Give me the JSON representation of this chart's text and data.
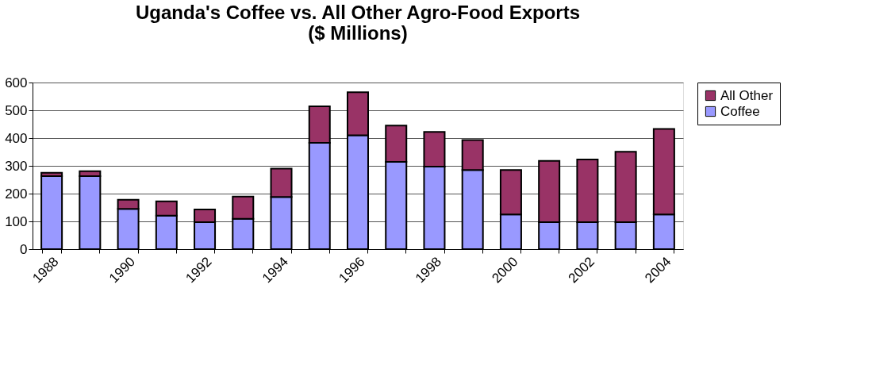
{
  "chart_data": {
    "type": "bar",
    "title": [
      "Uganda's Coffee vs. All Other Agro-Food Exports",
      "($ Millions)"
    ],
    "categories": [
      "1988",
      null,
      "1990",
      null,
      "1992",
      null,
      "1994",
      null,
      "1996",
      null,
      "1998",
      null,
      "2000",
      null,
      "2002",
      null,
      "2004"
    ],
    "stacked": true,
    "series": [
      {
        "name": "Coffee",
        "color": "#9999ff",
        "values": [
          263,
          263,
          145,
          121,
          97,
          109,
          188,
          383,
          410,
          314,
          297,
          285,
          125,
          97,
          97,
          97,
          125
        ]
      },
      {
        "name": "All Other",
        "color": "#993366",
        "values": [
          12,
          18,
          33,
          51,
          46,
          80,
          102,
          131,
          155,
          131,
          125,
          108,
          160,
          221,
          226,
          254,
          308
        ]
      }
    ],
    "ylim": [
      0,
      600
    ],
    "yticks": [
      0,
      100,
      200,
      300,
      400,
      500,
      600
    ],
    "grid": "y",
    "legend": "right"
  }
}
